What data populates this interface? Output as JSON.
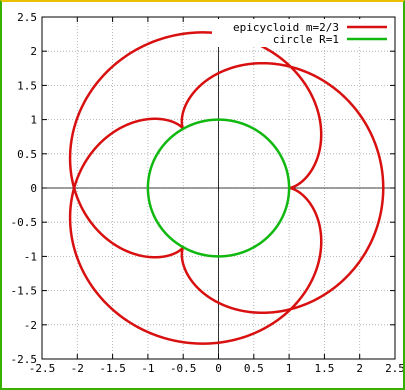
{
  "chart_data": {
    "type": "line",
    "title": "",
    "xlabel": "",
    "ylabel": "",
    "xlim": [
      -2.5,
      2.5
    ],
    "ylim": [
      -2.5,
      2.5
    ],
    "xticks": [
      "-2.5",
      "-2",
      "-1.5",
      "-1",
      "-0.5",
      "0",
      "0.5",
      "1",
      "1.5",
      "2",
      "2.5"
    ],
    "yticks": [
      "-2.5",
      "-2",
      "-1.5",
      "-1",
      "-0.5",
      "0",
      "0.5",
      "1",
      "1.5",
      "2",
      "2.5"
    ],
    "grid": true,
    "legend_placement": "top-right",
    "series": [
      {
        "name": "epicycloid m=2/3",
        "color": "#d81010",
        "curve": "epicycloid",
        "R": 1,
        "m": 0.6667,
        "theta_range_turns": 2
      },
      {
        "name": "circle R=1",
        "color": "#10b810",
        "curve": "circle",
        "R": 1
      }
    ]
  }
}
